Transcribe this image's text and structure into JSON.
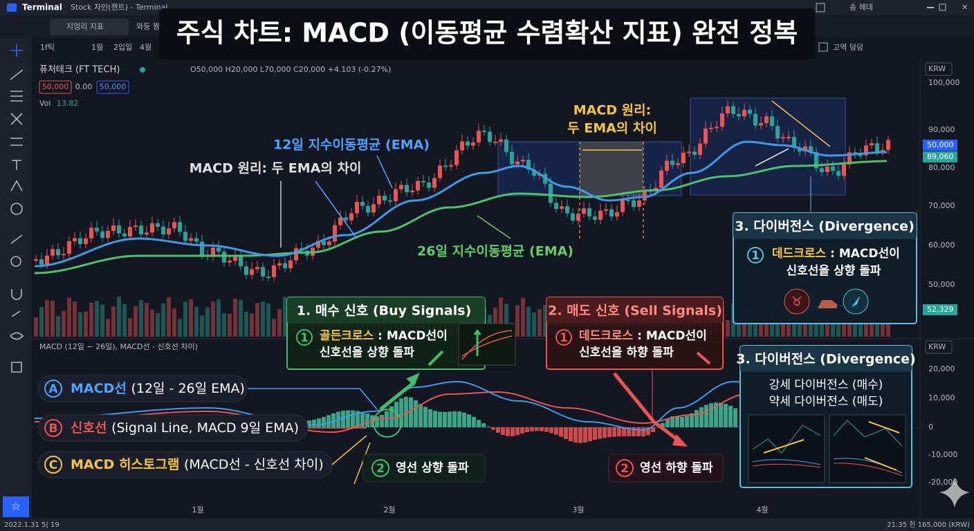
{
  "window": {
    "app": "Terminal",
    "title": "Stock 자인(챈트) - Terminal",
    "user": "솜 헤데"
  },
  "tabs": [
    "지엉리 지표",
    "와둥 꿩"
  ],
  "toolbar": {
    "interval": "1f틱",
    "ranges": [
      "1월",
      "2입일",
      "4월"
    ],
    "option": "고역 덩덩"
  },
  "headline": "주식 차트: MACD (이동평균 수렴확산 지표) 완전 정복",
  "symbol": {
    "name": "퓨처테크 (FT TECH)",
    "ohlc": "O50,000 H20,000 L70,000 C20,000 +4.103 (-0.27%)",
    "badges": [
      "50,000",
      "0.00",
      "50,000"
    ],
    "vol_label": "Vol",
    "vol_value": "13.82"
  },
  "price_axis": {
    "currency": "KRW",
    "ticks": [
      "100,000",
      "90,000",
      "80,000",
      "70,000",
      "60,000",
      "50,000"
    ],
    "badges": [
      "50,000",
      "89,060",
      "52,329"
    ]
  },
  "macd_axis": {
    "currency": "KRW",
    "ticks": [
      "20,000",
      "10,000",
      "0",
      "-10,000",
      "-20,000"
    ]
  },
  "time_axis": [
    "1월",
    "2월",
    "3월",
    "4월"
  ],
  "status": {
    "left": "2022.1.31 5| 19",
    "right": "21:35 힌 165,000 (KRW)"
  },
  "macd_pane_label": "MACD (12일 − 26일), MACD선 - 신호선 차이)",
  "annotations": {
    "ema12": "12일 지수이동평균 (EMA)",
    "principle": "MACD 원리: 두 EMA의 차이",
    "ema26": "26일 지수이동평균 (EMA)",
    "principle_box": [
      "MACD 원리:",
      "두 EMA의 차이"
    ]
  },
  "legend": [
    {
      "letter": "A",
      "term": "MACD선",
      "desc": "(12일 - 26일 EMA)"
    },
    {
      "letter": "B",
      "term": "신호선",
      "desc": "(Signal Line, MACD 9일 EMA)"
    },
    {
      "letter": "C",
      "term": "MACD 히스토그램",
      "desc": "(MACD선 - 신호선 차이)"
    }
  ],
  "buy": {
    "title": "1. 매수 신호 (Buy Signals)",
    "num": "1",
    "term": "골든크로스",
    "desc": [
      " : MACD선이",
      "신호선을 상향 돌파"
    ],
    "zero_num": "2",
    "zero_text": "영선 상향 돌파"
  },
  "sell": {
    "title": "2. 매도 신호 (Sell Signals)",
    "num": "1",
    "term": "데드크로스",
    "desc": [
      " : MACD선이",
      "신호선을 하향 돌파"
    ],
    "zero_num": "2",
    "zero_text": "영선 하향 돌파"
  },
  "divergence_top": {
    "title": "3. 다이버전스 (Divergence)",
    "num": "1",
    "term": "데드크로스",
    "desc": [
      " : MACD선이",
      "신호선을 상향 돌파"
    ]
  },
  "divergence_bottom": {
    "title": "3. 다이버전스 (Divergence)",
    "lines": [
      "강세 다이버전스 (매수)",
      "약세 다이버전스 (매도)"
    ]
  }
}
